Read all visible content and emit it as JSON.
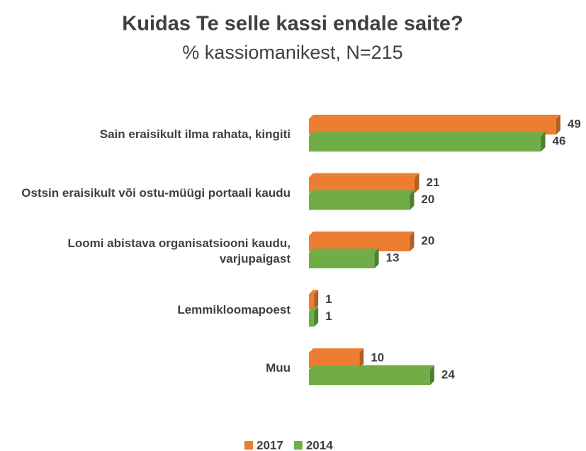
{
  "chart_data": {
    "type": "bar",
    "orientation": "horizontal",
    "title": "Kuidas Te selle kassi endale saite?",
    "subtitle": "% kassiomanikest, N=215",
    "categories": [
      "Sain eraisikult ilma rahata, kingiti",
      "Ostsin eraisikult või ostu-müügi portaali kaudu",
      "Loomi abistava organisatsiooni kaudu, varjupaigast",
      "Lemmikloomapoest",
      "Muu"
    ],
    "series": [
      {
        "name": "2017",
        "color": "#ED7D31",
        "side_color": "#B35E22",
        "values": [
          49,
          21,
          20,
          1,
          10
        ]
      },
      {
        "name": "2014",
        "color": "#70AD47",
        "side_color": "#4E7F30",
        "values": [
          46,
          20,
          13,
          1,
          24
        ]
      }
    ],
    "legend": "bottom"
  }
}
